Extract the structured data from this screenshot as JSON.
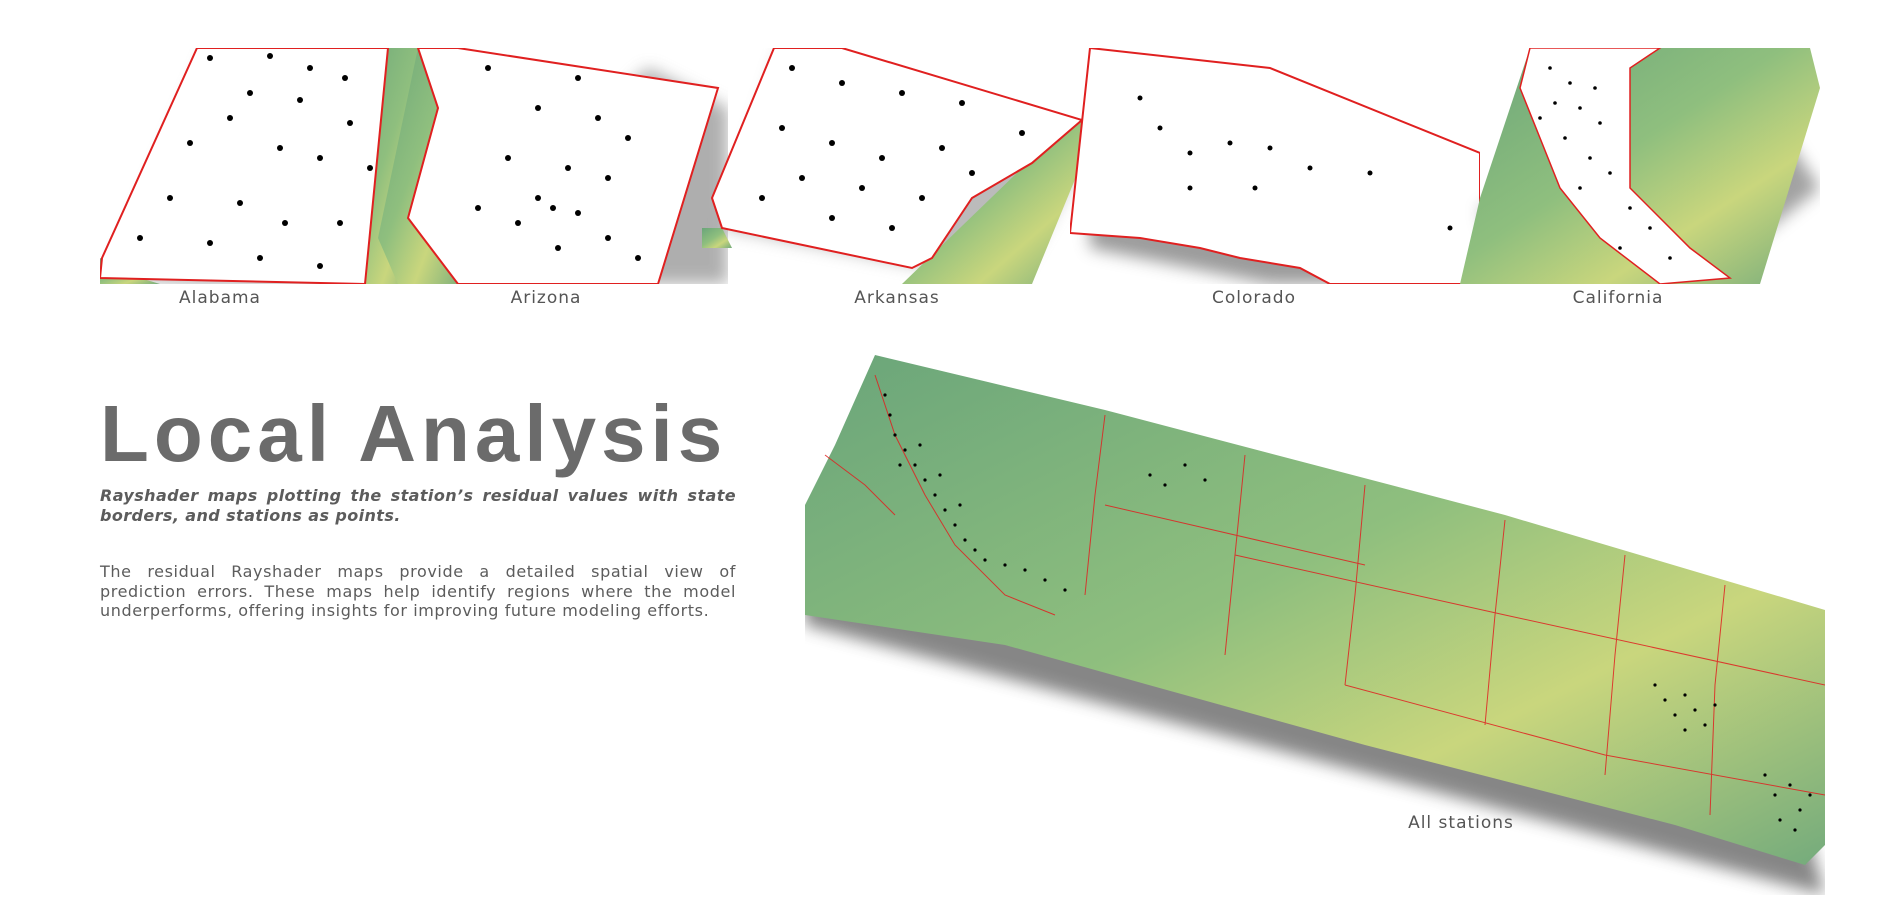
{
  "title": "Local Analysis",
  "subtitle": "Rayshader maps plotting the station’s residual values with state borders, and stations as points.",
  "body": "The residual Rayshader maps provide a detailed spatial view of prediction errors. These maps help identify regions where the model underperforms, offering insights for improving future modeling efforts.",
  "maps": [
    {
      "label": "Alabama"
    },
    {
      "label": "Arizona"
    },
    {
      "label": "Arkansas"
    },
    {
      "label": "Colorado"
    },
    {
      "label": "California"
    }
  ],
  "main_map": {
    "label": "All stations"
  },
  "colors": {
    "terrain_green": "#6aa57a",
    "terrain_yellow": "#c9d67d",
    "state_border": "#e02020",
    "station_point": "#000000",
    "shadow": "#7a7a7a",
    "text": "#5c5c5c",
    "title": "#6b6b6b"
  }
}
